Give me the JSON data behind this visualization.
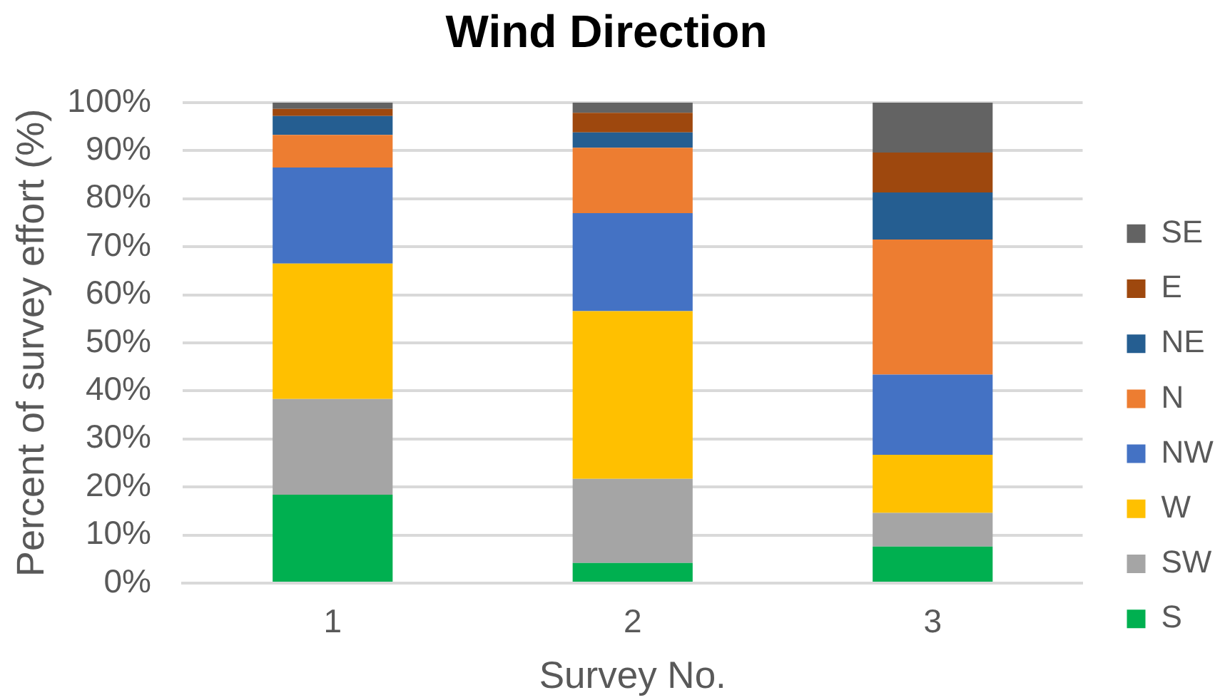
{
  "chart_data": {
    "type": "bar",
    "title": "Wind Direction",
    "xlabel": "Survey No.",
    "ylabel": "Percent of survey effort (%)",
    "categories": [
      "1",
      "2",
      "3"
    ],
    "series": [
      {
        "name": "S",
        "color": "#00b050",
        "values": [
          18.4,
          4.2,
          7.6
        ]
      },
      {
        "name": "SW",
        "color": "#a5a5a5",
        "values": [
          19.9,
          17.5,
          7.0
        ]
      },
      {
        "name": "W",
        "color": "#ffc000",
        "values": [
          28.2,
          34.9,
          12.1
        ]
      },
      {
        "name": "NW",
        "color": "#4472c4",
        "values": [
          20.0,
          20.4,
          16.7
        ]
      },
      {
        "name": "N",
        "color": "#ed7d31",
        "values": [
          6.8,
          13.6,
          28.1
        ]
      },
      {
        "name": "NE",
        "color": "#255e91",
        "values": [
          3.9,
          3.2,
          9.8
        ]
      },
      {
        "name": "E",
        "color": "#9e480e",
        "values": [
          1.5,
          4.1,
          8.3
        ]
      },
      {
        "name": "SE",
        "color": "#636363",
        "values": [
          1.3,
          2.1,
          10.4
        ]
      }
    ],
    "stacked": true,
    "ylim": [
      0,
      100
    ],
    "yticks": [
      {
        "value": 0,
        "label": "0%"
      },
      {
        "value": 10,
        "label": "10%"
      },
      {
        "value": 20,
        "label": "20%"
      },
      {
        "value": 30,
        "label": "30%"
      },
      {
        "value": 40,
        "label": "40%"
      },
      {
        "value": 50,
        "label": "50%"
      },
      {
        "value": 60,
        "label": "60%"
      },
      {
        "value": 70,
        "label": "70%"
      },
      {
        "value": 80,
        "label": "80%"
      },
      {
        "value": 90,
        "label": "90%"
      },
      {
        "value": 100,
        "label": "100%"
      }
    ],
    "grid": "y",
    "legend": "right"
  }
}
